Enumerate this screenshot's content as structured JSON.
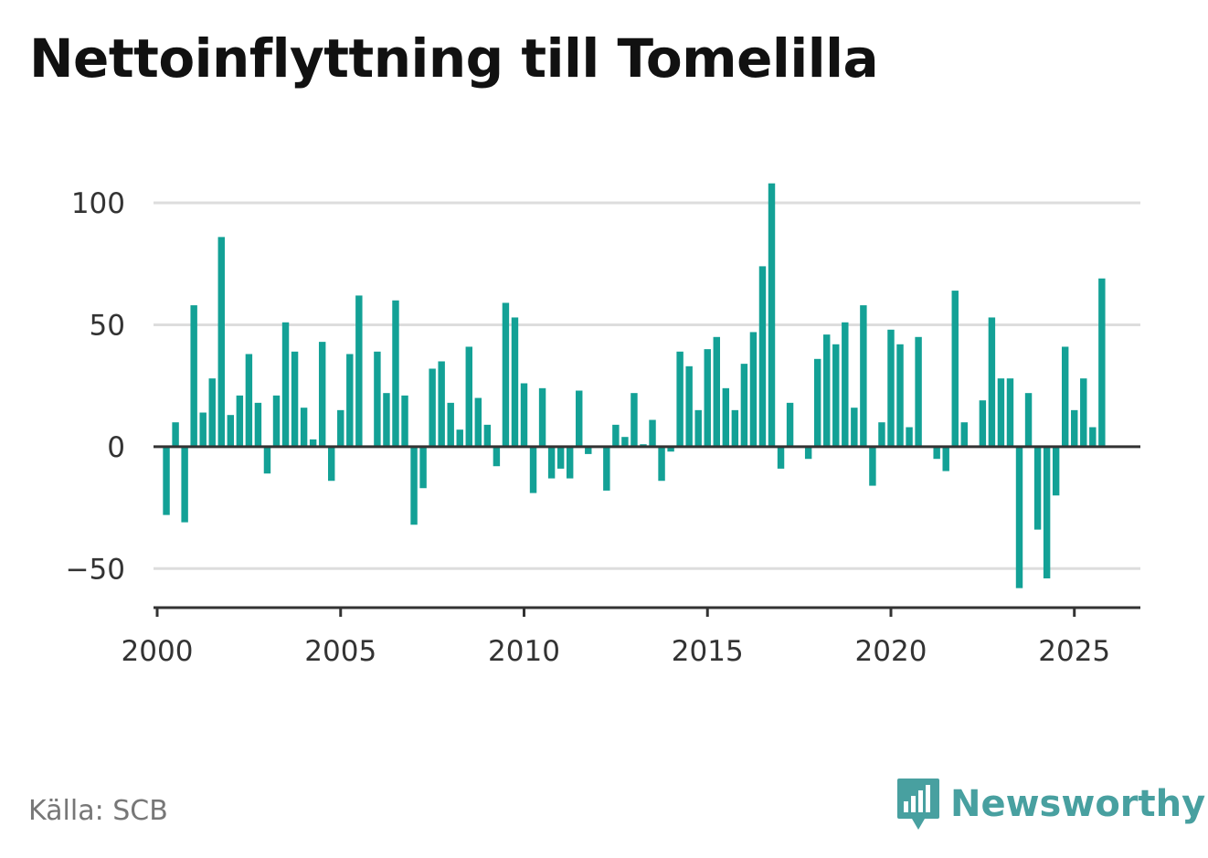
{
  "title": "Nettoinflyttning till Tomelilla",
  "source": "Källa: SCB",
  "brand": {
    "name": "Newsworthy",
    "icon": "newsworthy-logo-icon",
    "color": "#48a0a0"
  },
  "colors": {
    "bar": "#13a196",
    "grid": "#dddddd",
    "axis": "#333333"
  },
  "chart_data": {
    "type": "bar",
    "title": "Nettoinflyttning till Tomelilla",
    "xlabel": "",
    "ylabel": "",
    "frequency": "quarterly",
    "xlim": [
      1999.9,
      2026.8
    ],
    "ylim": [
      -66,
      112
    ],
    "yticks": [
      -50,
      0,
      50,
      100
    ],
    "ytick_labels": [
      "−50",
      "0",
      "50",
      "100"
    ],
    "xticks": [
      2000,
      2005,
      2010,
      2015,
      2020,
      2025
    ],
    "xtick_labels": [
      "2000",
      "2005",
      "2010",
      "2015",
      "2020",
      "2025"
    ],
    "grid": true,
    "start_year": 2000,
    "start_quarter": 2,
    "values": [
      -28,
      10,
      -31,
      58,
      14,
      28,
      86,
      13,
      21,
      38,
      18,
      -11,
      21,
      51,
      39,
      16,
      3,
      43,
      -14,
      15,
      38,
      62,
      0,
      39,
      22,
      60,
      21,
      -32,
      -17,
      32,
      35,
      18,
      7,
      41,
      20,
      9,
      -8,
      59,
      53,
      26,
      -19,
      24,
      -13,
      -9,
      -13,
      23,
      -3,
      0,
      -18,
      9,
      4,
      22,
      1,
      11,
      -14,
      -2,
      39,
      33,
      15,
      40,
      45,
      24,
      15,
      34,
      47,
      74,
      108,
      -9,
      18,
      0,
      -5,
      36,
      46,
      42,
      51,
      16,
      58,
      -16,
      10,
      48,
      42,
      8,
      45,
      0,
      -5,
      -10,
      64,
      10,
      0,
      19,
      53,
      28,
      28,
      -58,
      22,
      -34,
      -54,
      -20,
      41,
      15,
      28,
      8,
      69
    ]
  }
}
